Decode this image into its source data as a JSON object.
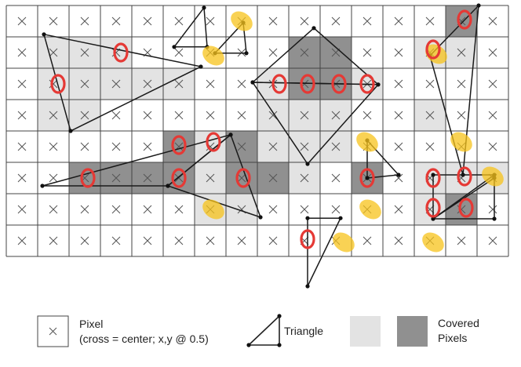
{
  "grid": {
    "cols": 16,
    "rows": 8
  },
  "colors": {
    "light_cover": "#e3e3e3",
    "dark_cover": "#909090",
    "grid_line": "#444444",
    "cross": "#555555",
    "red_mark": "#e53935",
    "yellow_mark": "#f7c31b"
  },
  "light_cells": [
    [
      1,
      1
    ],
    [
      2,
      1
    ],
    [
      3,
      1
    ],
    [
      1,
      2
    ],
    [
      2,
      2
    ],
    [
      3,
      2
    ],
    [
      4,
      2
    ],
    [
      5,
      2
    ],
    [
      1,
      3
    ],
    [
      2,
      3
    ],
    [
      5,
      4
    ],
    [
      6,
      4
    ],
    [
      7,
      4
    ],
    [
      6,
      5
    ],
    [
      7,
      5
    ],
    [
      6,
      6
    ],
    [
      7,
      6
    ],
    [
      8,
      2
    ],
    [
      9,
      2
    ],
    [
      10,
      2
    ],
    [
      11,
      2
    ],
    [
      8,
      3
    ],
    [
      9,
      3
    ],
    [
      10,
      3
    ],
    [
      8,
      4
    ],
    [
      9,
      4
    ],
    [
      10,
      4
    ],
    [
      9,
      5
    ],
    [
      14,
      0
    ],
    [
      14,
      1
    ],
    [
      13,
      1
    ],
    [
      13,
      5
    ],
    [
      13,
      6
    ],
    [
      14,
      5
    ],
    [
      15,
      5
    ],
    [
      13,
      3
    ]
  ],
  "dark_cells": [
    [
      9,
      1
    ],
    [
      10,
      1
    ],
    [
      9,
      2
    ],
    [
      10,
      2
    ],
    [
      2,
      5
    ],
    [
      3,
      5
    ],
    [
      4,
      5
    ],
    [
      5,
      5
    ],
    [
      8,
      5
    ],
    [
      5,
      4
    ],
    [
      7,
      4
    ],
    [
      7,
      5
    ],
    [
      11,
      5
    ],
    [
      14,
      6
    ],
    [
      14,
      0
    ]
  ],
  "triangles": [
    [
      [
        1.2,
        0.92
      ],
      [
        6.2,
        1.95
      ],
      [
        2.05,
        4.0
      ]
    ],
    [
      [
        5.35,
        1.32
      ],
      [
        6.3,
        0.07
      ],
      [
        6.4,
        1.32
      ]
    ],
    [
      [
        6.65,
        1.52
      ],
      [
        7.55,
        0.55
      ],
      [
        7.65,
        1.52
      ]
    ],
    [
      [
        7.85,
        2.45
      ],
      [
        9.8,
        0.72
      ],
      [
        11.85,
        2.52
      ]
    ],
    [
      [
        9.6,
        5.05
      ],
      [
        11.85,
        2.52
      ],
      [
        7.85,
        2.45
      ]
    ],
    [
      [
        1.15,
        5.75
      ],
      [
        7.15,
        4.12
      ],
      [
        5.15,
        5.75
      ]
    ],
    [
      [
        5.15,
        5.75
      ],
      [
        7.15,
        4.12
      ],
      [
        8.1,
        6.75
      ]
    ],
    [
      [
        9.6,
        6.78
      ],
      [
        10.65,
        6.78
      ],
      [
        9.6,
        8.95
      ]
    ],
    [
      [
        11.5,
        4.3
      ],
      [
        12.5,
        5.4
      ],
      [
        11.5,
        5.5
      ]
    ],
    [
      [
        13.5,
        1.6
      ],
      [
        15.05,
        0.0
      ],
      [
        14.55,
        5.4
      ]
    ],
    [
      [
        13.6,
        5.4
      ],
      [
        15.55,
        5.4
      ],
      [
        13.6,
        6.8
      ]
    ],
    [
      [
        13.6,
        6.8
      ],
      [
        15.55,
        5.5
      ],
      [
        15.55,
        6.8
      ]
    ]
  ],
  "red_marks": [
    [
      3.65,
      1.5
    ],
    [
      1.65,
      2.5
    ],
    [
      8.7,
      2.5
    ],
    [
      9.6,
      2.5
    ],
    [
      10.6,
      2.5
    ],
    [
      11.5,
      2.5
    ],
    [
      5.5,
      4.45
    ],
    [
      6.6,
      4.35
    ],
    [
      2.6,
      5.5
    ],
    [
      5.5,
      5.5
    ],
    [
      7.55,
      5.5
    ],
    [
      13.6,
      1.4
    ],
    [
      14.6,
      0.45
    ],
    [
      11.5,
      5.5
    ],
    [
      13.6,
      5.5
    ],
    [
      14.6,
      5.45
    ],
    [
      13.6,
      6.45
    ],
    [
      14.65,
      6.45
    ],
    [
      9.6,
      7.45
    ]
  ],
  "yellow_marks": [
    [
      6.6,
      1.6
    ],
    [
      7.5,
      0.5
    ],
    [
      11.5,
      4.35
    ],
    [
      6.6,
      6.5
    ],
    [
      11.6,
      6.5
    ],
    [
      10.75,
      7.55
    ],
    [
      13.6,
      7.55
    ],
    [
      14.5,
      4.35
    ],
    [
      15.5,
      5.45
    ],
    [
      13.7,
      1.55
    ]
  ],
  "legend": {
    "pixel_title": "Pixel",
    "pixel_caption": "(cross = center; x,y @ 0.5)",
    "triangle_label": "Triangle",
    "covered_label_line1": "Covered",
    "covered_label_line2": "Pixels"
  }
}
